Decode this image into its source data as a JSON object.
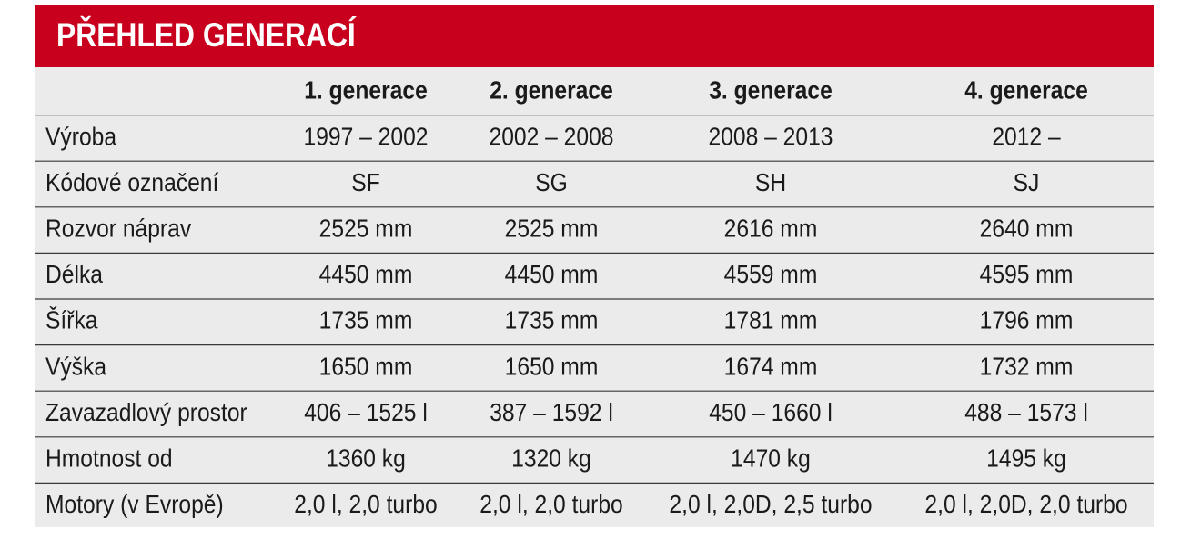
{
  "header": {
    "title": "PŘEHLED GENERACÍ"
  },
  "table": {
    "columns": [
      "1. generace",
      "2. generace",
      "3. generace",
      "4. generace"
    ],
    "rows": [
      [
        "Výroba",
        "1997 – 2002",
        "2002 – 2008",
        "2008 – 2013",
        "2012 –"
      ],
      [
        "Kódové označení",
        "SF",
        "SG",
        "SH",
        "SJ"
      ],
      [
        "Rozvor náprav",
        "2525 mm",
        "2525 mm",
        "2616 mm",
        "2640 mm"
      ],
      [
        "Délka",
        "4450 mm",
        "4450 mm",
        "4559 mm",
        "4595 mm"
      ],
      [
        "Šířka",
        "1735 mm",
        "1735 mm",
        "1781 mm",
        "1796 mm"
      ],
      [
        "Výška",
        "1650 mm",
        "1650 mm",
        "1674 mm",
        "1732 mm"
      ],
      [
        "Zavazadlový prostor",
        "406 – 1525 l",
        "387 – 1592 l",
        "450 – 1660 l",
        "488 – 1573 l"
      ],
      [
        "Hmotnost od",
        "1360 kg",
        "1320 kg",
        "1470 kg",
        "1495 kg"
      ],
      [
        "Motory (v Evropě)",
        "2,0 l, 2,0 turbo",
        "2,0 l, 2,0 turbo",
        "2,0 l, 2,0D, 2,5 turbo",
        "2,0 l, 2,0D, 2,0 turbo"
      ]
    ]
  }
}
